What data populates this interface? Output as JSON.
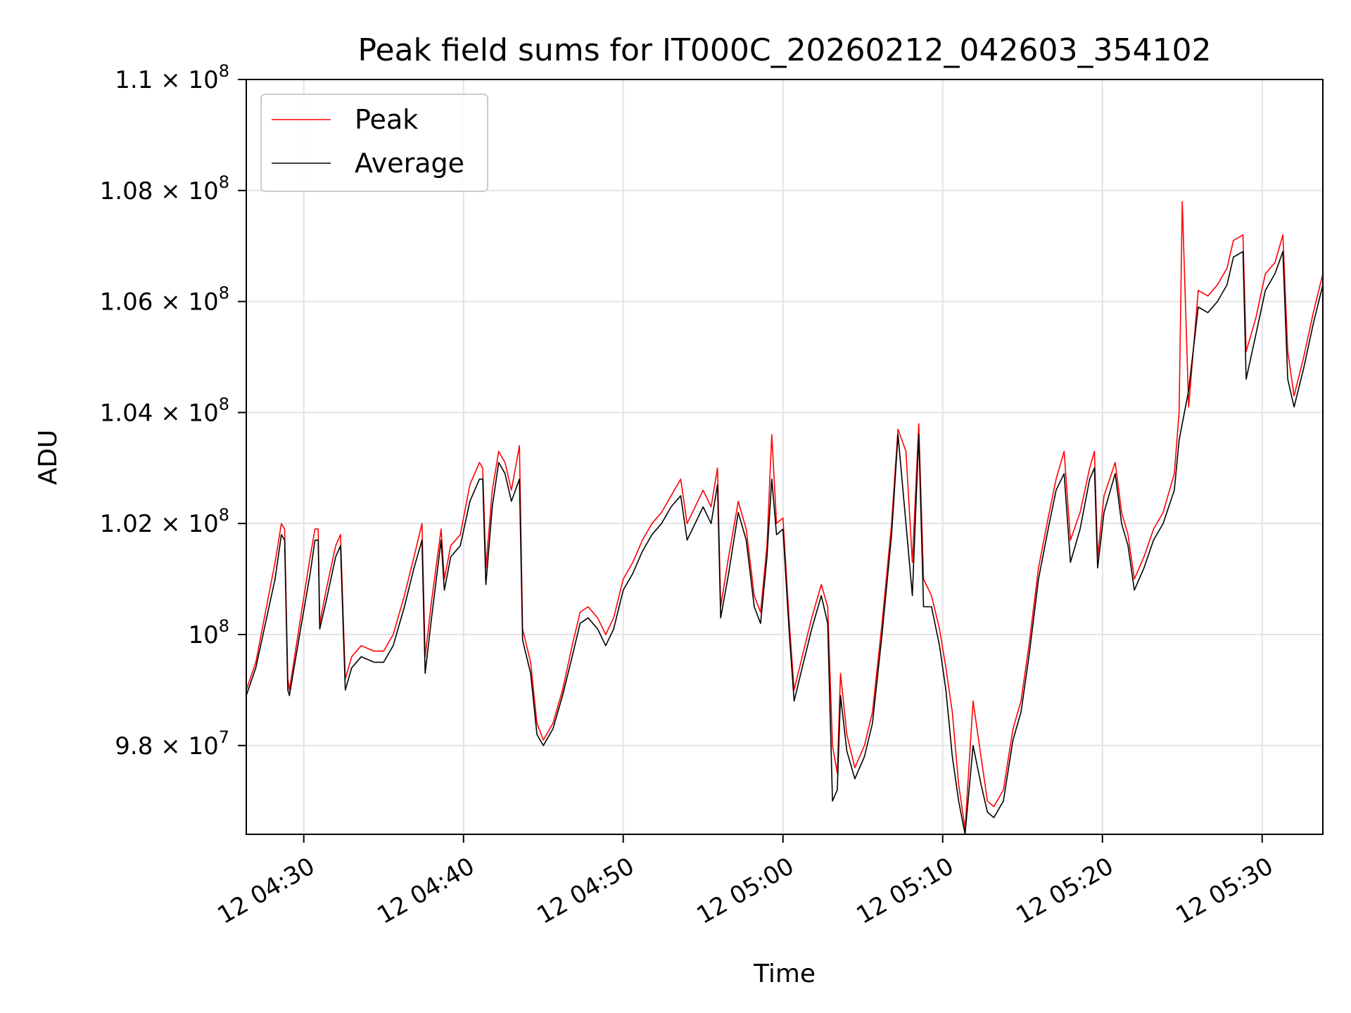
{
  "chart_data": {
    "type": "line",
    "title": "Peak field sums for IT000C_20260212_042603_354102",
    "xlabel": "Time",
    "ylabel": "ADU",
    "x_unit": "minutes after 12 04:26:00",
    "xlim": [
      0.4,
      67.8
    ],
    "ylim": [
      96.4,
      110.0
    ],
    "y_unit": "ADU x 10^6",
    "grid": true,
    "legend_position": "top-left",
    "x_ticks": [
      {
        "value": 4,
        "label": "12 04:30"
      },
      {
        "value": 14,
        "label": "12 04:40"
      },
      {
        "value": 24,
        "label": "12 04:50"
      },
      {
        "value": 34,
        "label": "12 05:00"
      },
      {
        "value": 44,
        "label": "12 05:10"
      },
      {
        "value": 54,
        "label": "12 05:20"
      },
      {
        "value": 64,
        "label": "12 05:30"
      }
    ],
    "y_ticks": [
      {
        "value": 98,
        "mantissa": "9.8 × 10",
        "exp": "7"
      },
      {
        "value": 100,
        "mantissa": "10",
        "exp": "8"
      },
      {
        "value": 102,
        "mantissa": "1.02 × 10",
        "exp": "8"
      },
      {
        "value": 104,
        "mantissa": "1.04 × 10",
        "exp": "8"
      },
      {
        "value": 106,
        "mantissa": "1.06 × 10",
        "exp": "8"
      },
      {
        "value": 108,
        "mantissa": "1.08 × 10",
        "exp": "8"
      },
      {
        "value": 110,
        "mantissa": "1.1 × 10",
        "exp": "8"
      }
    ],
    "series": [
      {
        "name": "Peak",
        "color": "#ff0000",
        "points": [
          [
            0.4,
            99.0
          ],
          [
            1.0,
            99.5
          ],
          [
            1.6,
            100.4
          ],
          [
            2.2,
            101.3
          ],
          [
            2.6,
            102.0
          ],
          [
            2.8,
            101.9
          ],
          [
            3.0,
            99.2
          ],
          [
            3.1,
            99.0
          ],
          [
            3.8,
            100.3
          ],
          [
            4.4,
            101.4
          ],
          [
            4.7,
            101.9
          ],
          [
            4.9,
            101.9
          ],
          [
            5.0,
            100.2
          ],
          [
            5.4,
            100.8
          ],
          [
            6.0,
            101.6
          ],
          [
            6.3,
            101.8
          ],
          [
            6.6,
            99.2
          ],
          [
            7.0,
            99.6
          ],
          [
            7.6,
            99.8
          ],
          [
            8.4,
            99.7
          ],
          [
            9.0,
            99.7
          ],
          [
            9.6,
            100.0
          ],
          [
            10.3,
            100.7
          ],
          [
            10.9,
            101.4
          ],
          [
            11.4,
            102.0
          ],
          [
            11.6,
            99.6
          ],
          [
            12.0,
            100.6
          ],
          [
            12.6,
            101.9
          ],
          [
            12.8,
            101.0
          ],
          [
            13.2,
            101.6
          ],
          [
            13.8,
            101.8
          ],
          [
            14.4,
            102.7
          ],
          [
            15.0,
            103.1
          ],
          [
            15.2,
            103.0
          ],
          [
            15.4,
            101.2
          ],
          [
            15.8,
            102.6
          ],
          [
            16.2,
            103.3
          ],
          [
            16.6,
            103.1
          ],
          [
            17.0,
            102.6
          ],
          [
            17.5,
            103.4
          ],
          [
            17.7,
            100.1
          ],
          [
            18.2,
            99.5
          ],
          [
            18.6,
            98.4
          ],
          [
            19.0,
            98.1
          ],
          [
            19.6,
            98.4
          ],
          [
            20.2,
            99.0
          ],
          [
            20.8,
            99.8
          ],
          [
            21.3,
            100.4
          ],
          [
            21.8,
            100.5
          ],
          [
            22.4,
            100.3
          ],
          [
            22.9,
            100.0
          ],
          [
            23.4,
            100.3
          ],
          [
            24.0,
            101.0
          ],
          [
            24.6,
            101.3
          ],
          [
            25.2,
            101.7
          ],
          [
            25.8,
            102.0
          ],
          [
            26.4,
            102.2
          ],
          [
            27.0,
            102.5
          ],
          [
            27.6,
            102.8
          ],
          [
            28.0,
            102.0
          ],
          [
            28.5,
            102.3
          ],
          [
            29.0,
            102.6
          ],
          [
            29.5,
            102.3
          ],
          [
            29.9,
            103.0
          ],
          [
            30.1,
            100.5
          ],
          [
            30.6,
            101.4
          ],
          [
            31.2,
            102.4
          ],
          [
            31.7,
            101.9
          ],
          [
            32.2,
            100.7
          ],
          [
            32.6,
            100.4
          ],
          [
            33.0,
            101.6
          ],
          [
            33.3,
            103.6
          ],
          [
            33.6,
            102.0
          ],
          [
            34.0,
            102.1
          ],
          [
            34.4,
            100.2
          ],
          [
            34.7,
            99.0
          ],
          [
            35.2,
            99.6
          ],
          [
            35.8,
            100.3
          ],
          [
            36.4,
            100.9
          ],
          [
            36.8,
            100.5
          ],
          [
            37.1,
            98.0
          ],
          [
            37.4,
            97.5
          ],
          [
            37.6,
            99.3
          ],
          [
            38.0,
            98.2
          ],
          [
            38.5,
            97.6
          ],
          [
            39.1,
            98.0
          ],
          [
            39.6,
            98.6
          ],
          [
            40.2,
            100.2
          ],
          [
            40.8,
            102.0
          ],
          [
            41.2,
            103.7
          ],
          [
            41.7,
            103.3
          ],
          [
            42.1,
            101.3
          ],
          [
            42.5,
            103.8
          ],
          [
            42.8,
            101.0
          ],
          [
            43.3,
            100.7
          ],
          [
            43.8,
            100.1
          ],
          [
            44.2,
            99.4
          ],
          [
            44.6,
            98.6
          ],
          [
            45.0,
            97.3
          ],
          [
            45.4,
            96.5
          ],
          [
            45.9,
            98.8
          ],
          [
            46.4,
            97.8
          ],
          [
            46.8,
            97.0
          ],
          [
            47.2,
            96.9
          ],
          [
            47.8,
            97.2
          ],
          [
            48.4,
            98.3
          ],
          [
            48.9,
            98.8
          ],
          [
            49.4,
            99.8
          ],
          [
            50.0,
            101.2
          ],
          [
            50.6,
            102.1
          ],
          [
            51.1,
            102.8
          ],
          [
            51.6,
            103.3
          ],
          [
            52.0,
            101.7
          ],
          [
            52.6,
            102.2
          ],
          [
            53.2,
            103.0
          ],
          [
            53.5,
            103.3
          ],
          [
            53.7,
            101.4
          ],
          [
            54.1,
            102.5
          ],
          [
            54.8,
            103.1
          ],
          [
            55.2,
            102.2
          ],
          [
            55.6,
            101.8
          ],
          [
            56.0,
            101.0
          ],
          [
            56.6,
            101.4
          ],
          [
            57.2,
            101.9
          ],
          [
            57.8,
            102.2
          ],
          [
            58.5,
            102.9
          ],
          [
            58.8,
            104.0
          ],
          [
            59.0,
            107.8
          ],
          [
            59.4,
            104.1
          ],
          [
            60.0,
            106.2
          ],
          [
            60.6,
            106.1
          ],
          [
            61.2,
            106.3
          ],
          [
            61.8,
            106.6
          ],
          [
            62.2,
            107.1
          ],
          [
            62.8,
            107.2
          ],
          [
            63.0,
            105.1
          ],
          [
            63.6,
            105.7
          ],
          [
            64.2,
            106.5
          ],
          [
            64.8,
            106.7
          ],
          [
            65.3,
            107.2
          ],
          [
            65.6,
            105.1
          ],
          [
            66.0,
            104.3
          ],
          [
            66.6,
            105.0
          ],
          [
            67.2,
            105.8
          ],
          [
            67.8,
            106.5
          ]
        ]
      },
      {
        "name": "Average",
        "color": "#000000",
        "points": [
          [
            0.4,
            98.9
          ],
          [
            1.0,
            99.4
          ],
          [
            1.6,
            100.2
          ],
          [
            2.2,
            101.0
          ],
          [
            2.6,
            101.8
          ],
          [
            2.8,
            101.7
          ],
          [
            3.0,
            99.0
          ],
          [
            3.1,
            98.9
          ],
          [
            3.8,
            100.1
          ],
          [
            4.4,
            101.1
          ],
          [
            4.7,
            101.7
          ],
          [
            4.9,
            101.7
          ],
          [
            5.0,
            100.1
          ],
          [
            5.4,
            100.6
          ],
          [
            6.0,
            101.4
          ],
          [
            6.3,
            101.6
          ],
          [
            6.6,
            99.0
          ],
          [
            7.0,
            99.4
          ],
          [
            7.6,
            99.6
          ],
          [
            8.4,
            99.5
          ],
          [
            9.0,
            99.5
          ],
          [
            9.6,
            99.8
          ],
          [
            10.3,
            100.5
          ],
          [
            10.9,
            101.2
          ],
          [
            11.4,
            101.7
          ],
          [
            11.6,
            99.3
          ],
          [
            12.0,
            100.3
          ],
          [
            12.6,
            101.7
          ],
          [
            12.8,
            100.8
          ],
          [
            13.2,
            101.4
          ],
          [
            13.8,
            101.6
          ],
          [
            14.4,
            102.4
          ],
          [
            15.0,
            102.8
          ],
          [
            15.2,
            102.8
          ],
          [
            15.4,
            100.9
          ],
          [
            15.8,
            102.3
          ],
          [
            16.2,
            103.1
          ],
          [
            16.6,
            102.9
          ],
          [
            17.0,
            102.4
          ],
          [
            17.5,
            102.8
          ],
          [
            17.7,
            99.9
          ],
          [
            18.2,
            99.3
          ],
          [
            18.6,
            98.2
          ],
          [
            19.0,
            98.0
          ],
          [
            19.6,
            98.3
          ],
          [
            20.2,
            98.9
          ],
          [
            20.8,
            99.6
          ],
          [
            21.3,
            100.2
          ],
          [
            21.8,
            100.3
          ],
          [
            22.4,
            100.1
          ],
          [
            22.9,
            99.8
          ],
          [
            23.4,
            100.1
          ],
          [
            24.0,
            100.8
          ],
          [
            24.6,
            101.1
          ],
          [
            25.2,
            101.5
          ],
          [
            25.8,
            101.8
          ],
          [
            26.4,
            102.0
          ],
          [
            27.0,
            102.3
          ],
          [
            27.6,
            102.5
          ],
          [
            28.0,
            101.7
          ],
          [
            28.5,
            102.0
          ],
          [
            29.0,
            102.3
          ],
          [
            29.5,
            102.0
          ],
          [
            29.9,
            102.7
          ],
          [
            30.1,
            100.3
          ],
          [
            30.6,
            101.1
          ],
          [
            31.2,
            102.2
          ],
          [
            31.7,
            101.7
          ],
          [
            32.2,
            100.5
          ],
          [
            32.6,
            100.2
          ],
          [
            33.0,
            101.4
          ],
          [
            33.3,
            102.8
          ],
          [
            33.6,
            101.8
          ],
          [
            34.0,
            101.9
          ],
          [
            34.4,
            100.0
          ],
          [
            34.7,
            98.8
          ],
          [
            35.2,
            99.4
          ],
          [
            35.8,
            100.1
          ],
          [
            36.4,
            100.7
          ],
          [
            36.8,
            100.2
          ],
          [
            37.1,
            97.0
          ],
          [
            37.4,
            97.2
          ],
          [
            37.6,
            98.9
          ],
          [
            38.0,
            97.9
          ],
          [
            38.5,
            97.4
          ],
          [
            39.1,
            97.8
          ],
          [
            39.6,
            98.4
          ],
          [
            40.2,
            100.0
          ],
          [
            40.8,
            101.8
          ],
          [
            41.2,
            103.6
          ],
          [
            41.7,
            102.0
          ],
          [
            42.1,
            100.7
          ],
          [
            42.5,
            103.6
          ],
          [
            42.8,
            100.5
          ],
          [
            43.3,
            100.5
          ],
          [
            43.8,
            99.8
          ],
          [
            44.2,
            99.0
          ],
          [
            44.6,
            97.8
          ],
          [
            45.0,
            97.0
          ],
          [
            45.4,
            96.4
          ],
          [
            45.9,
            98.0
          ],
          [
            46.4,
            97.3
          ],
          [
            46.8,
            96.8
          ],
          [
            47.2,
            96.7
          ],
          [
            47.8,
            97.0
          ],
          [
            48.4,
            98.1
          ],
          [
            48.9,
            98.6
          ],
          [
            49.4,
            99.6
          ],
          [
            50.0,
            101.0
          ],
          [
            50.6,
            101.9
          ],
          [
            51.1,
            102.6
          ],
          [
            51.6,
            102.9
          ],
          [
            52.0,
            101.3
          ],
          [
            52.6,
            101.9
          ],
          [
            53.2,
            102.8
          ],
          [
            53.5,
            103.0
          ],
          [
            53.7,
            101.2
          ],
          [
            54.1,
            102.2
          ],
          [
            54.8,
            102.9
          ],
          [
            55.2,
            102.0
          ],
          [
            55.6,
            101.6
          ],
          [
            56.0,
            100.8
          ],
          [
            56.6,
            101.2
          ],
          [
            57.2,
            101.7
          ],
          [
            57.8,
            102.0
          ],
          [
            58.5,
            102.6
          ],
          [
            58.8,
            103.5
          ],
          [
            59.0,
            103.8
          ],
          [
            59.4,
            104.4
          ],
          [
            60.0,
            105.9
          ],
          [
            60.6,
            105.8
          ],
          [
            61.2,
            106.0
          ],
          [
            61.8,
            106.3
          ],
          [
            62.2,
            106.8
          ],
          [
            62.8,
            106.9
          ],
          [
            63.0,
            104.6
          ],
          [
            63.6,
            105.4
          ],
          [
            64.2,
            106.2
          ],
          [
            64.8,
            106.5
          ],
          [
            65.3,
            106.9
          ],
          [
            65.6,
            104.6
          ],
          [
            66.0,
            104.1
          ],
          [
            66.6,
            104.8
          ],
          [
            67.2,
            105.6
          ],
          [
            67.8,
            106.3
          ]
        ]
      }
    ]
  }
}
